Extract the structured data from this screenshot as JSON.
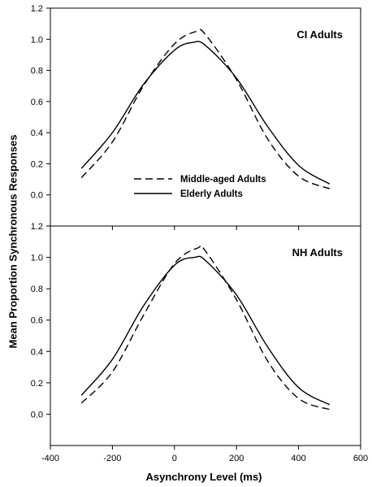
{
  "chart_data": {
    "type": "line",
    "xlabel": "Asynchrony Level (ms)",
    "ylabel": "Mean Proportion Synchronous Responses",
    "xlim": [
      -400,
      600
    ],
    "xticks": [
      "-400",
      "-200",
      "0",
      "200",
      "400",
      "600"
    ],
    "xtick_values": [
      -400,
      -200,
      0,
      200,
      400,
      600
    ],
    "grid": false,
    "legend": {
      "placement": "inside-bottom-center-top-panel",
      "entries": [
        "Middle-aged Adults",
        "Elderly Adults"
      ]
    },
    "panels": [
      {
        "label": "CI Adults",
        "ylim": [
          -0.2,
          1.2
        ],
        "yticks": [
          "0.0",
          "0.2",
          "0.4",
          "0.6",
          "0.8",
          "1.0",
          "1.2"
        ],
        "ytick_values": [
          0.0,
          0.2,
          0.4,
          0.6,
          0.8,
          1.0,
          1.2
        ],
        "series": [
          {
            "name": "Middle-aged Adults",
            "style": "dashed",
            "x": [
              -300,
              -200,
              -100,
              0,
              70,
              100,
              200,
              300,
              400,
              500
            ],
            "values": [
              0.11,
              0.34,
              0.7,
              0.97,
              1.05,
              1.03,
              0.74,
              0.36,
              0.12,
              0.04
            ]
          },
          {
            "name": "Elderly Adults",
            "style": "solid",
            "x": [
              -300,
              -200,
              -100,
              0,
              60,
              100,
              200,
              300,
              400,
              500
            ],
            "values": [
              0.17,
              0.4,
              0.71,
              0.93,
              0.98,
              0.96,
              0.75,
              0.44,
              0.19,
              0.07
            ]
          }
        ]
      },
      {
        "label": "NH Adults",
        "ylim": [
          -0.2,
          1.2
        ],
        "yticks": [
          "0.0",
          "0.2",
          "0.4",
          "0.6",
          "0.8",
          "1.0",
          "1.2"
        ],
        "ytick_values": [
          0.0,
          0.2,
          0.4,
          0.6,
          0.8,
          1.0,
          1.2
        ],
        "series": [
          {
            "name": "Middle-aged Adults",
            "style": "dashed",
            "x": [
              -300,
              -200,
              -100,
              0,
              75,
              100,
              200,
              300,
              400,
              500
            ],
            "values": [
              0.07,
              0.27,
              0.63,
              0.96,
              1.06,
              1.04,
              0.73,
              0.34,
              0.1,
              0.03
            ]
          },
          {
            "name": "Elderly Adults",
            "style": "solid",
            "x": [
              -300,
              -200,
              -100,
              0,
              65,
              100,
              200,
              300,
              400,
              500
            ],
            "values": [
              0.12,
              0.35,
              0.69,
              0.95,
              1.0,
              0.98,
              0.76,
              0.43,
              0.17,
              0.06
            ]
          }
        ]
      }
    ]
  }
}
